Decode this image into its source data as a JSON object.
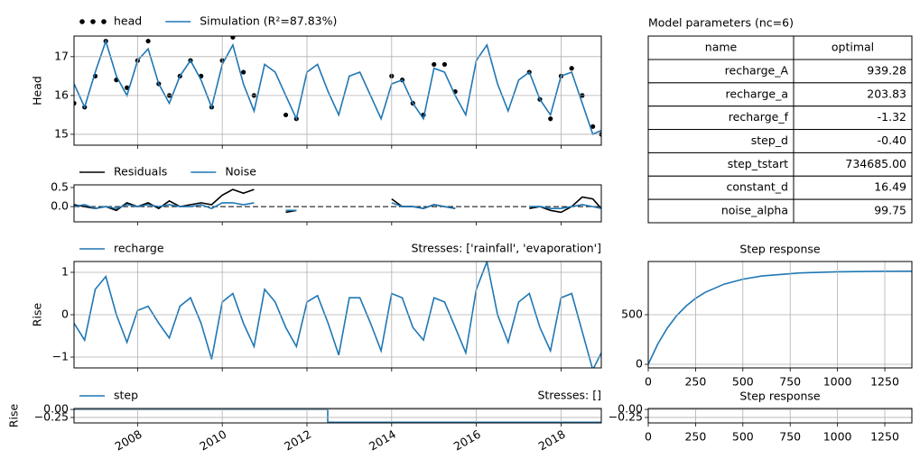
{
  "chart_data": [
    {
      "type": "line",
      "ylabel": "Head",
      "xlim": [
        2006.5,
        2018.95
      ],
      "ylim": [
        14.72,
        17.53
      ],
      "yticks": [
        15,
        16,
        17
      ],
      "xticks": [
        2008,
        2010,
        2012,
        2014,
        2016,
        2018
      ],
      "xtick_labels": false,
      "grid": true,
      "x": [
        2006.5,
        2006.75,
        2007,
        2007.25,
        2007.5,
        2007.75,
        2008,
        2008.25,
        2008.5,
        2008.75,
        2009,
        2009.25,
        2009.5,
        2009.75,
        2010,
        2010.25,
        2010.5,
        2010.75,
        2011,
        2011.25,
        2011.5,
        2011.75,
        2012,
        2012.25,
        2012.5,
        2012.75,
        2013,
        2013.25,
        2013.5,
        2013.75,
        2014,
        2014.25,
        2014.5,
        2014.75,
        2015,
        2015.25,
        2015.5,
        2015.75,
        2016,
        2016.25,
        2016.5,
        2016.75,
        2017,
        2017.25,
        2017.5,
        2017.75,
        2018,
        2018.25,
        2018.5,
        2018.75,
        2018.95
      ],
      "series": [
        {
          "name": "head",
          "kind": "scatter",
          "color": "#000000",
          "values": [
            15.8,
            15.7,
            16.5,
            17.4,
            16.4,
            16.2,
            16.9,
            17.4,
            16.3,
            16.0,
            16.5,
            16.9,
            16.5,
            15.7,
            16.9,
            17.5,
            16.6,
            16.0,
            null,
            null,
            15.5,
            15.4,
            null,
            null,
            null,
            null,
            null,
            null,
            null,
            null,
            16.5,
            16.4,
            15.8,
            15.5,
            16.8,
            16.8,
            16.1,
            null,
            null,
            null,
            null,
            null,
            null,
            16.6,
            15.9,
            15.4,
            16.5,
            16.7,
            16.0,
            15.2,
            15.0
          ]
        },
        {
          "name": "Simulation (R²=87.83%)",
          "kind": "line",
          "color": "#1f77b4",
          "values": [
            16.3,
            15.7,
            16.6,
            17.4,
            16.5,
            16.0,
            16.9,
            17.2,
            16.3,
            15.8,
            16.5,
            16.9,
            16.4,
            15.7,
            16.8,
            17.3,
            16.3,
            15.6,
            16.8,
            16.6,
            16.0,
            15.4,
            16.6,
            16.8,
            16.1,
            15.5,
            16.5,
            16.6,
            16.0,
            15.4,
            16.3,
            16.4,
            15.8,
            15.4,
            16.7,
            16.6,
            16.0,
            15.5,
            16.9,
            17.3,
            16.3,
            15.6,
            16.4,
            16.6,
            15.9,
            15.5,
            16.5,
            16.6,
            15.8,
            15.0,
            15.1
          ]
        }
      ]
    },
    {
      "type": "line",
      "xlim": [
        2006.5,
        2018.95
      ],
      "ylim": [
        -0.4,
        0.57
      ],
      "yticks": [
        0.5,
        {
          "value": 0,
          "label": "0.0"
        }
      ],
      "xticks": [
        2008,
        2010,
        2012,
        2014,
        2016,
        2018
      ],
      "xtick_labels": false,
      "grid": false,
      "hline": 0,
      "x": [
        2006.5,
        2006.75,
        2007,
        2007.25,
        2007.5,
        2007.75,
        2008,
        2008.25,
        2008.5,
        2008.75,
        2009,
        2009.25,
        2009.5,
        2009.75,
        2010,
        2010.25,
        2010.5,
        2010.75,
        2011,
        2011.25,
        2011.5,
        2011.75,
        2012,
        2012.25,
        2012.5,
        2012.75,
        2013,
        2013.25,
        2013.5,
        2013.75,
        2014,
        2014.25,
        2014.5,
        2014.75,
        2015,
        2015.25,
        2015.5,
        2015.75,
        2016,
        2016.25,
        2016.5,
        2016.75,
        2017,
        2017.25,
        2017.5,
        2017.75,
        2018,
        2018.25,
        2018.5,
        2018.75,
        2018.95
      ],
      "series": [
        {
          "name": "Residuals",
          "kind": "line",
          "color": "#000000",
          "values": [
            0.05,
            0.0,
            -0.05,
            0.0,
            -0.1,
            0.1,
            0.0,
            0.1,
            -0.05,
            0.15,
            0.0,
            0.05,
            0.1,
            0.05,
            0.3,
            0.45,
            0.35,
            0.45,
            null,
            null,
            -0.15,
            -0.1,
            null,
            null,
            null,
            null,
            null,
            null,
            null,
            null,
            0.2,
            0.0,
            0.0,
            -0.05,
            0.05,
            0.0,
            -0.05,
            null,
            null,
            null,
            null,
            null,
            null,
            -0.05,
            0.0,
            -0.1,
            -0.15,
            0.0,
            0.25,
            0.2,
            -0.05
          ]
        },
        {
          "name": "Noise",
          "kind": "line",
          "color": "#1f77b4",
          "values": [
            0.0,
            0.05,
            -0.05,
            0.0,
            -0.05,
            0.05,
            0.0,
            0.05,
            0.0,
            0.05,
            0.0,
            0.0,
            0.05,
            -0.05,
            0.1,
            0.1,
            0.05,
            0.1,
            null,
            null,
            -0.1,
            -0.1,
            null,
            null,
            null,
            null,
            null,
            null,
            null,
            null,
            0.1,
            0.0,
            0.0,
            -0.05,
            0.05,
            0.0,
            -0.05,
            null,
            null,
            null,
            null,
            null,
            null,
            0.0,
            0.0,
            -0.05,
            -0.05,
            0.0,
            0.05,
            0.0,
            -0.05
          ]
        }
      ]
    },
    {
      "type": "line",
      "ylabel": "Rise",
      "title_right": "Stresses: ['rainfall', 'evaporation']",
      "xlim": [
        2006.5,
        2018.95
      ],
      "ylim": [
        -1.255,
        1.255
      ],
      "yticks": [
        {
          "value": -1,
          "label": "−1"
        },
        0,
        1
      ],
      "xticks": [
        2008,
        2010,
        2012,
        2014,
        2016,
        2018
      ],
      "xtick_labels": false,
      "grid": true,
      "x": [
        2006.5,
        2006.75,
        2007,
        2007.25,
        2007.5,
        2007.75,
        2008,
        2008.25,
        2008.5,
        2008.75,
        2009,
        2009.25,
        2009.5,
        2009.75,
        2010,
        2010.25,
        2010.5,
        2010.75,
        2011,
        2011.25,
        2011.5,
        2011.75,
        2012,
        2012.25,
        2012.5,
        2012.75,
        2013,
        2013.25,
        2013.5,
        2013.75,
        2014,
        2014.25,
        2014.5,
        2014.75,
        2015,
        2015.25,
        2015.5,
        2015.75,
        2016,
        2016.25,
        2016.5,
        2016.75,
        2017,
        2017.25,
        2017.5,
        2017.75,
        2018,
        2018.25,
        2018.5,
        2018.75,
        2018.95
      ],
      "series": [
        {
          "name": "recharge",
          "kind": "line",
          "color": "#1f77b4",
          "values": [
            -0.2,
            -0.6,
            0.6,
            0.9,
            0.0,
            -0.65,
            0.1,
            0.2,
            -0.2,
            -0.55,
            0.2,
            0.4,
            -0.2,
            -1.05,
            0.3,
            0.5,
            -0.2,
            -0.75,
            0.6,
            0.3,
            -0.3,
            -0.75,
            0.3,
            0.45,
            -0.2,
            -0.95,
            0.4,
            0.4,
            -0.2,
            -0.85,
            0.5,
            0.4,
            -0.3,
            -0.6,
            0.4,
            0.3,
            -0.3,
            -0.9,
            0.6,
            1.25,
            0.0,
            -0.65,
            0.3,
            0.5,
            -0.3,
            -0.85,
            0.4,
            0.5,
            -0.4,
            -1.3,
            -0.9
          ]
        }
      ]
    },
    {
      "type": "line",
      "ylabel": "Rise",
      "title_right": "Stresses: []",
      "xlim": [
        2006.5,
        2018.95
      ],
      "ylim": [
        -0.42,
        0.03
      ],
      "yticks": [
        {
          "value": -0.25,
          "label": "−0.25"
        },
        {
          "value": 0,
          "label": "0.00"
        }
      ],
      "xticks": [
        2008,
        2010,
        2012,
        2014,
        2016,
        2018
      ],
      "xtick_labels": true,
      "grid": true,
      "x": [
        2006.5,
        2012.49,
        2012.49,
        2018.95
      ],
      "series": [
        {
          "name": "step",
          "kind": "line",
          "color": "#1f77b4",
          "values": [
            0,
            0,
            -0.4,
            -0.4
          ]
        }
      ]
    },
    {
      "type": "table",
      "title": "Model parameters (nc=6)",
      "columns": [
        "name",
        "optimal"
      ],
      "rows": [
        [
          "recharge_A",
          "939.28"
        ],
        [
          "recharge_a",
          "203.83"
        ],
        [
          "recharge_f",
          "-1.32"
        ],
        [
          "step_d",
          "-0.40"
        ],
        [
          "step_tstart",
          "734685.00"
        ],
        [
          "constant_d",
          "16.49"
        ],
        [
          "noise_alpha",
          "99.75"
        ]
      ]
    },
    {
      "type": "line",
      "title": "Step response",
      "xlim": [
        0,
        1393
      ],
      "ylim": [
        -36,
        1036
      ],
      "xticks": [
        0,
        250,
        500,
        750,
        1000,
        1250
      ],
      "yticks": [
        0,
        500
      ],
      "xtick_labels": true,
      "grid": true,
      "x": [
        0,
        50,
        100,
        150,
        200,
        250,
        300,
        400,
        500,
        600,
        800,
        1000,
        1200,
        1393
      ],
      "series": [
        {
          "kind": "line",
          "color": "#1f77b4",
          "values": [
            0,
            204,
            364,
            489,
            587,
            664,
            724,
            807,
            858,
            890,
            921,
            932,
            937,
            938
          ]
        }
      ]
    },
    {
      "type": "line",
      "title": "Step response",
      "xlim": [
        0,
        1393
      ],
      "ylim": [
        -0.42,
        0.03
      ],
      "xticks": [
        0,
        250,
        500,
        750,
        1000,
        1250
      ],
      "yticks": [
        {
          "value": -0.25,
          "label": "−0.25"
        },
        {
          "value": 0,
          "label": "0.00"
        }
      ],
      "xtick_labels": true,
      "grid": true,
      "series": []
    }
  ]
}
